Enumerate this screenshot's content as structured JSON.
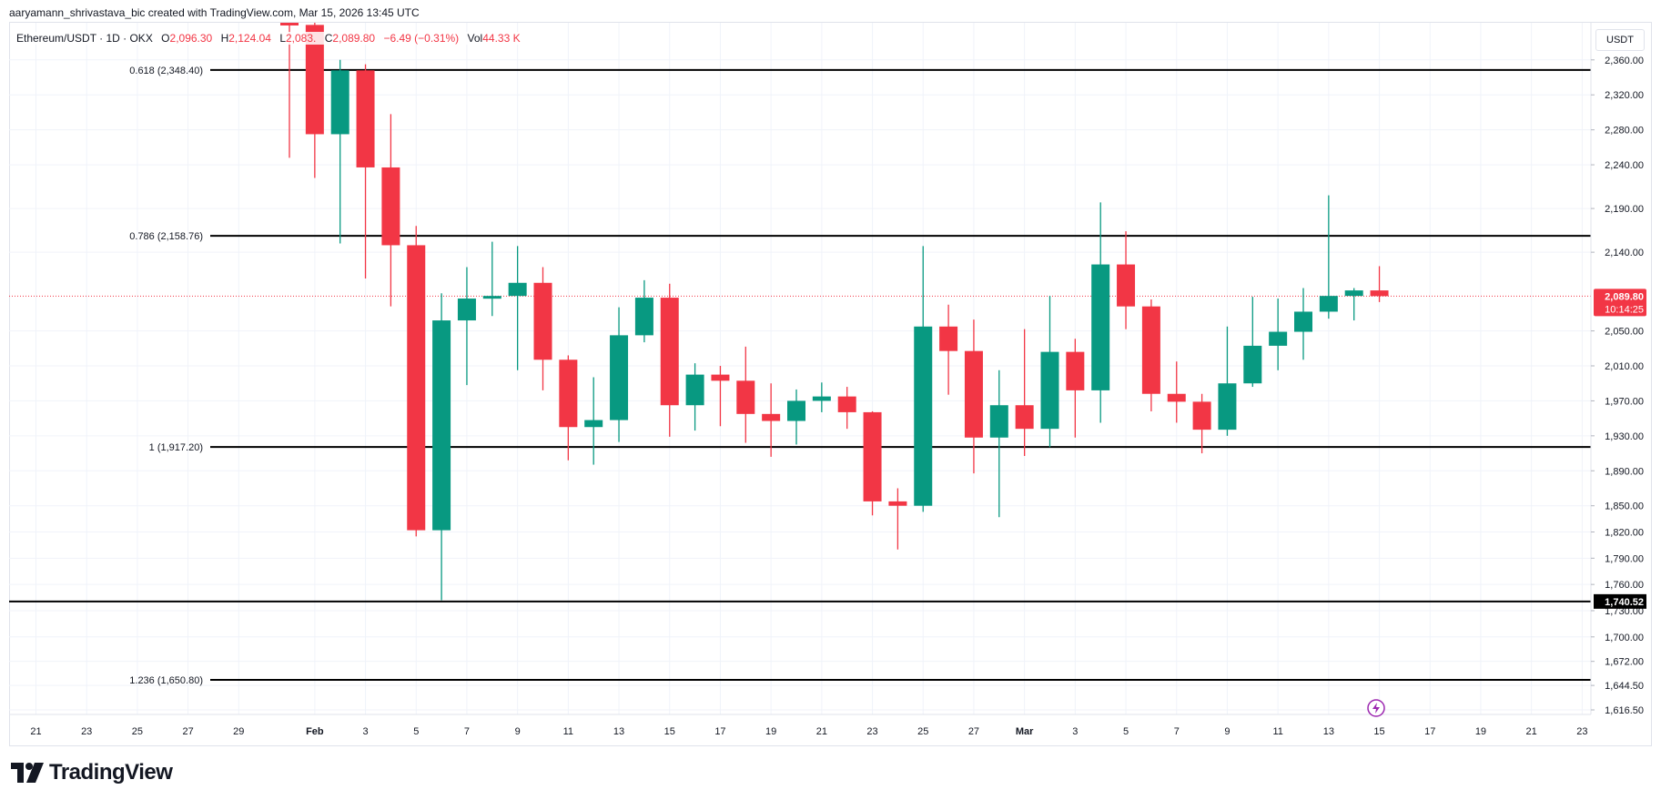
{
  "attribution": "aaryamann_shrivastava_bic created with TradingView.com, Mar 15, 2026 13:45 UTC",
  "legend": {
    "symbol": "Ethereum/USDT · 1D · OKX",
    "o_label": "O",
    "o_value": "2,096.30",
    "h_label": "H",
    "h_value": "2,124.04",
    "l_label": "L",
    "l_value": "2,083.",
    "c_label": "C",
    "c_value": "2,089.80",
    "change": "−6.49 (−0.31%)",
    "vol_label": "Vol",
    "vol_value": "44.33 K"
  },
  "currency_button": "USDT",
  "brand": "TradingView",
  "colors": {
    "up": "#089981",
    "down": "#f23645",
    "price_line": "#f23645",
    "level_line": "#000000"
  },
  "chart_data": {
    "type": "candlestick",
    "title": "Ethereum/USDT · 1D · OKX",
    "ylim": [
      1605,
      2375
    ],
    "y_ticks": [
      {
        "label": "2,360.00",
        "value": 2360
      },
      {
        "label": "2,320.00",
        "value": 2320
      },
      {
        "label": "2,280.00",
        "value": 2280
      },
      {
        "label": "2,240.00",
        "value": 2240
      },
      {
        "label": "2,190.00",
        "value": 2190
      },
      {
        "label": "2,140.00",
        "value": 2140
      },
      {
        "label": "2,050.00",
        "value": 2050
      },
      {
        "label": "2,010.00",
        "value": 2010
      },
      {
        "label": "1,970.00",
        "value": 1970
      },
      {
        "label": "1,930.00",
        "value": 1930
      },
      {
        "label": "1,890.00",
        "value": 1890
      },
      {
        "label": "1,850.00",
        "value": 1850
      },
      {
        "label": "1,820.00",
        "value": 1820
      },
      {
        "label": "1,790.00",
        "value": 1790
      },
      {
        "label": "1,760.00",
        "value": 1760
      },
      {
        "label": "1,730.00",
        "value": 1730
      },
      {
        "label": "1,700.00",
        "value": 1700
      },
      {
        "label": "1,672.00",
        "value": 1672
      },
      {
        "label": "1,644.50",
        "value": 1644.5
      },
      {
        "label": "1,616.50",
        "value": 1616.5
      }
    ],
    "x_ticks": [
      {
        "label": "21",
        "idx": -10,
        "bold": false
      },
      {
        "label": "23",
        "idx": -8,
        "bold": false
      },
      {
        "label": "25",
        "idx": -6,
        "bold": false
      },
      {
        "label": "27",
        "idx": -4,
        "bold": false
      },
      {
        "label": "29",
        "idx": -2,
        "bold": false
      },
      {
        "label": "Feb",
        "idx": 1,
        "bold": true
      },
      {
        "label": "3",
        "idx": 3,
        "bold": false
      },
      {
        "label": "5",
        "idx": 5,
        "bold": false
      },
      {
        "label": "7",
        "idx": 7,
        "bold": false
      },
      {
        "label": "9",
        "idx": 9,
        "bold": false
      },
      {
        "label": "11",
        "idx": 11,
        "bold": false
      },
      {
        "label": "13",
        "idx": 13,
        "bold": false
      },
      {
        "label": "15",
        "idx": 15,
        "bold": false
      },
      {
        "label": "17",
        "idx": 17,
        "bold": false
      },
      {
        "label": "19",
        "idx": 19,
        "bold": false
      },
      {
        "label": "21",
        "idx": 21,
        "bold": false
      },
      {
        "label": "23",
        "idx": 23,
        "bold": false
      },
      {
        "label": "25",
        "idx": 25,
        "bold": false
      },
      {
        "label": "27",
        "idx": 27,
        "bold": false
      },
      {
        "label": "Mar",
        "idx": 29,
        "bold": true
      },
      {
        "label": "3",
        "idx": 31,
        "bold": false
      },
      {
        "label": "5",
        "idx": 33,
        "bold": false
      },
      {
        "label": "7",
        "idx": 35,
        "bold": false
      },
      {
        "label": "9",
        "idx": 37,
        "bold": false
      },
      {
        "label": "11",
        "idx": 39,
        "bold": false
      },
      {
        "label": "13",
        "idx": 41,
        "bold": false
      },
      {
        "label": "15",
        "idx": 43,
        "bold": false
      },
      {
        "label": "17",
        "idx": 45,
        "bold": false
      },
      {
        "label": "19",
        "idx": 47,
        "bold": false
      },
      {
        "label": "21",
        "idx": 49,
        "bold": false
      },
      {
        "label": "23",
        "idx": 51,
        "bold": false
      }
    ],
    "candles": [
      {
        "date": "Jan 31",
        "open": 2545,
        "high": 2580,
        "low": 2248,
        "close": 2400
      },
      {
        "date": "Feb 1",
        "open": 2400,
        "high": 2430,
        "low": 2225,
        "close": 2275
      },
      {
        "date": "Feb 2",
        "open": 2275,
        "high": 2360,
        "low": 2150,
        "close": 2348
      },
      {
        "date": "Feb 3",
        "open": 2348,
        "high": 2355,
        "low": 2110,
        "close": 2237
      },
      {
        "date": "Feb 4",
        "open": 2237,
        "high": 2298,
        "low": 2078,
        "close": 2148
      },
      {
        "date": "Feb 5",
        "open": 2148,
        "high": 2170,
        "low": 1815,
        "close": 1822
      },
      {
        "date": "Feb 6",
        "open": 1822,
        "high": 2093,
        "low": 1742,
        "close": 2062
      },
      {
        "date": "Feb 7",
        "open": 2062,
        "high": 2123,
        "low": 1988,
        "close": 2087
      },
      {
        "date": "Feb 8",
        "open": 2087,
        "high": 2152,
        "low": 2067,
        "close": 2090
      },
      {
        "date": "Feb 9",
        "open": 2090,
        "high": 2147,
        "low": 2005,
        "close": 2105
      },
      {
        "date": "Feb 10",
        "open": 2105,
        "high": 2123,
        "low": 1982,
        "close": 2017
      },
      {
        "date": "Feb 11",
        "open": 2017,
        "high": 2022,
        "low": 1902,
        "close": 1940
      },
      {
        "date": "Feb 12",
        "open": 1940,
        "high": 1997,
        "low": 1897,
        "close": 1948
      },
      {
        "date": "Feb 13",
        "open": 1948,
        "high": 2077,
        "low": 1923,
        "close": 2045
      },
      {
        "date": "Feb 14",
        "open": 2045,
        "high": 2108,
        "low": 2037,
        "close": 2088
      },
      {
        "date": "Feb 15",
        "open": 2088,
        "high": 2104,
        "low": 1929,
        "close": 1965
      },
      {
        "date": "Feb 16",
        "open": 1965,
        "high": 2013,
        "low": 1936,
        "close": 2000
      },
      {
        "date": "Feb 17",
        "open": 2000,
        "high": 2010,
        "low": 1941,
        "close": 1993
      },
      {
        "date": "Feb 18",
        "open": 1993,
        "high": 2032,
        "low": 1922,
        "close": 1955
      },
      {
        "date": "Feb 19",
        "open": 1955,
        "high": 1990,
        "low": 1906,
        "close": 1947
      },
      {
        "date": "Feb 20",
        "open": 1947,
        "high": 1983,
        "low": 1920,
        "close": 1970
      },
      {
        "date": "Feb 21",
        "open": 1970,
        "high": 1991,
        "low": 1957,
        "close": 1975
      },
      {
        "date": "Feb 22",
        "open": 1975,
        "high": 1986,
        "low": 1938,
        "close": 1957
      },
      {
        "date": "Feb 23",
        "open": 1957,
        "high": 1958,
        "low": 1839,
        "close": 1855
      },
      {
        "date": "Feb 24",
        "open": 1855,
        "high": 1870,
        "low": 1800,
        "close": 1850
      },
      {
        "date": "Feb 25",
        "open": 1850,
        "high": 2147,
        "low": 1843,
        "close": 2055
      },
      {
        "date": "Feb 26",
        "open": 2055,
        "high": 2080,
        "low": 1977,
        "close": 2027
      },
      {
        "date": "Feb 27",
        "open": 2027,
        "high": 2063,
        "low": 1887,
        "close": 1928
      },
      {
        "date": "Feb 28",
        "open": 1928,
        "high": 2005,
        "low": 1837,
        "close": 1965
      },
      {
        "date": "Mar 1",
        "open": 1965,
        "high": 2052,
        "low": 1907,
        "close": 1938
      },
      {
        "date": "Mar 2",
        "open": 1938,
        "high": 2090,
        "low": 1917,
        "close": 2026
      },
      {
        "date": "Mar 3",
        "open": 2026,
        "high": 2041,
        "low": 1928,
        "close": 1982
      },
      {
        "date": "Mar 4",
        "open": 1982,
        "high": 2197,
        "low": 1945,
        "close": 2126
      },
      {
        "date": "Mar 5",
        "open": 2126,
        "high": 2164,
        "low": 2052,
        "close": 2078
      },
      {
        "date": "Mar 6",
        "open": 2078,
        "high": 2086,
        "low": 1958,
        "close": 1978
      },
      {
        "date": "Mar 7",
        "open": 1978,
        "high": 2015,
        "low": 1945,
        "close": 1969
      },
      {
        "date": "Mar 8",
        "open": 1969,
        "high": 1978,
        "low": 1910,
        "close": 1937
      },
      {
        "date": "Mar 9",
        "open": 1937,
        "high": 2055,
        "low": 1930,
        "close": 1990
      },
      {
        "date": "Mar 10",
        "open": 1990,
        "high": 2089,
        "low": 1986,
        "close": 2033
      },
      {
        "date": "Mar 11",
        "open": 2033,
        "high": 2087,
        "low": 2005,
        "close": 2049
      },
      {
        "date": "Mar 12",
        "open": 2049,
        "high": 2099,
        "low": 2017,
        "close": 2072
      },
      {
        "date": "Mar 13",
        "open": 2072,
        "high": 2205,
        "low": 2064,
        "close": 2090
      },
      {
        "date": "Mar 14",
        "open": 2090,
        "high": 2099,
        "low": 2062,
        "close": 2096.3
      },
      {
        "date": "Mar 15",
        "open": 2096.3,
        "high": 2124.04,
        "low": 2083,
        "close": 2089.8
      }
    ],
    "levels": [
      {
        "label": "0.618 (2,348.40)",
        "value": 2348.4
      },
      {
        "label": "0.786 (2,158.76)",
        "value": 2158.76
      },
      {
        "label": "1 (1,917.20)",
        "value": 1917.2
      },
      {
        "label": "1.236 (1,650.80)",
        "value": 1650.8
      }
    ],
    "support_line": {
      "value": 1740.52,
      "label": "1,740.52"
    },
    "current_price": {
      "value": 2089.8,
      "label": "2,089.80",
      "countdown": "10:14:25"
    },
    "grid": true
  }
}
